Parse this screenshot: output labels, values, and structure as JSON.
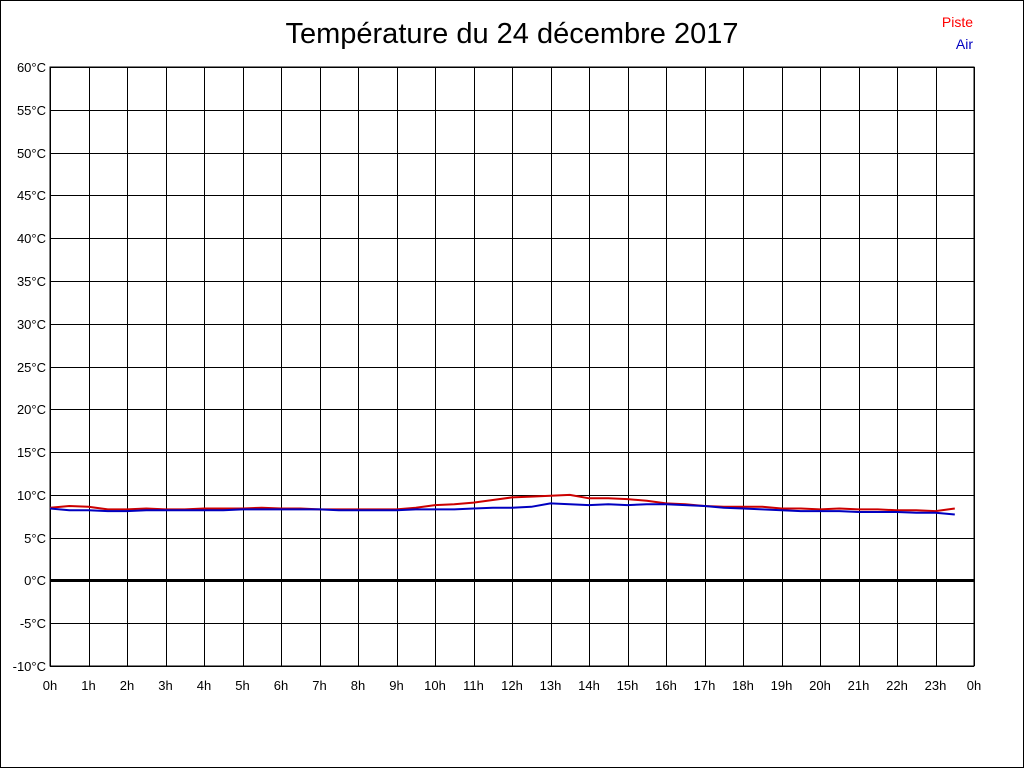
{
  "chart_data": {
    "type": "line",
    "title": "Température du 24 décembre 2017",
    "xlabel": "",
    "ylabel": "",
    "x_tick_labels": [
      "0h",
      "1h",
      "2h",
      "3h",
      "4h",
      "5h",
      "6h",
      "7h",
      "8h",
      "9h",
      "10h",
      "11h",
      "12h",
      "13h",
      "14h",
      "15h",
      "16h",
      "17h",
      "18h",
      "19h",
      "20h",
      "21h",
      "22h",
      "23h",
      "0h"
    ],
    "y_tick_labels": [
      "60°C",
      "55°C",
      "50°C",
      "45°C",
      "40°C",
      "35°C",
      "30°C",
      "25°C",
      "20°C",
      "15°C",
      "10°C",
      "5°C",
      "0°C",
      "-5°C",
      "-10°C"
    ],
    "ylim": [
      -10,
      60
    ],
    "y_step": 5,
    "xlim": [
      0,
      24
    ],
    "x_step": 1,
    "grid": true,
    "zero_line": true,
    "legend": [
      {
        "label": "Piste",
        "color": "#ff0000"
      },
      {
        "label": "Air",
        "color": "#0000c0"
      }
    ],
    "legend_position": "top-right",
    "x": [
      0,
      0.5,
      1,
      1.5,
      2,
      2.5,
      3,
      3.5,
      4,
      4.5,
      5,
      5.5,
      6,
      6.5,
      7,
      7.5,
      8,
      8.5,
      9,
      9.5,
      10,
      10.5,
      11,
      11.5,
      12,
      12.5,
      13,
      13.5,
      14,
      14.5,
      15,
      15.5,
      16,
      16.5,
      17,
      17.5,
      18,
      18.5,
      19,
      19.5,
      20,
      20.5,
      21,
      21.5,
      22,
      22.5,
      23,
      23.5
    ],
    "series": [
      {
        "name": "Piste",
        "color": "#cc0000",
        "values": [
          8.5,
          8.7,
          8.6,
          8.3,
          8.3,
          8.4,
          8.3,
          8.3,
          8.4,
          8.4,
          8.4,
          8.5,
          8.4,
          8.4,
          8.3,
          8.3,
          8.3,
          8.3,
          8.3,
          8.5,
          8.8,
          8.9,
          9.1,
          9.4,
          9.7,
          9.8,
          9.9,
          10.0,
          9.6,
          9.6,
          9.5,
          9.3,
          9.0,
          8.9,
          8.7,
          8.6,
          8.6,
          8.6,
          8.4,
          8.4,
          8.3,
          8.4,
          8.3,
          8.3,
          8.2,
          8.2,
          8.1,
          8.4
        ]
      },
      {
        "name": "Air",
        "color": "#0000c0",
        "values": [
          8.4,
          8.2,
          8.2,
          8.1,
          8.1,
          8.2,
          8.2,
          8.2,
          8.2,
          8.2,
          8.3,
          8.3,
          8.3,
          8.3,
          8.3,
          8.2,
          8.2,
          8.2,
          8.2,
          8.3,
          8.3,
          8.3,
          8.4,
          8.5,
          8.5,
          8.6,
          9.0,
          8.9,
          8.8,
          8.9,
          8.8,
          8.9,
          8.9,
          8.8,
          8.7,
          8.5,
          8.4,
          8.3,
          8.2,
          8.1,
          8.1,
          8.1,
          8.0,
          8.0,
          8.0,
          7.9,
          7.9,
          7.7
        ]
      }
    ]
  }
}
